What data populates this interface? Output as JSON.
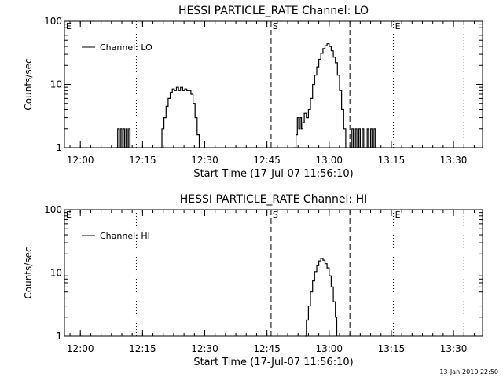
{
  "chart_data": [
    {
      "type": "line",
      "title": "HESSI PARTICLE_RATE Channel: LO",
      "xlabel": "Start Time (17-Jul-07 11:56:10)",
      "ylabel": "Counts/sec",
      "y_scale": "log",
      "ylim": [
        1,
        100
      ],
      "y_ticks": [
        {
          "value": 1,
          "label": "1"
        },
        {
          "value": 10,
          "label": "10"
        },
        {
          "value": 100,
          "label": "100"
        }
      ],
      "xlim": [
        "11:56:10",
        "13:37:00"
      ],
      "x_ticks": [
        "12:00",
        "12:15",
        "12:30",
        "12:45",
        "13:00",
        "13:15",
        "13:30"
      ],
      "legend": {
        "placement": "top-left",
        "entries": [
          "Channel: LO"
        ]
      },
      "markers": [
        {
          "label": "E",
          "time": "11:56:10",
          "style": "dotted"
        },
        {
          "label": "",
          "time": "12:13:30",
          "style": "dotted"
        },
        {
          "label": "S",
          "time": "12:46:00",
          "style": "dashed"
        },
        {
          "label": "",
          "time": "13:05:00",
          "style": "dashed"
        },
        {
          "label": "E",
          "time": "13:15:30",
          "style": "dotted"
        },
        {
          "label": "",
          "time": "13:32:30",
          "style": "dotted"
        }
      ],
      "series": [
        {
          "name": "Channel: LO",
          "segments": [
            [
              [
                "12:08:40",
                1
              ],
              [
                "12:09:00",
                2
              ],
              [
                "12:09:20",
                1
              ],
              [
                "12:09:40",
                2
              ],
              [
                "12:10:00",
                1
              ],
              [
                "12:10:20",
                2
              ],
              [
                "12:10:40",
                1
              ],
              [
                "12:11:00",
                2
              ],
              [
                "12:11:20",
                1
              ],
              [
                "12:11:40",
                2
              ],
              [
                "12:12:00",
                1
              ]
            ],
            [
              [
                "12:19:00",
                1
              ],
              [
                "12:19:40",
                2
              ],
              [
                "12:20:10",
                3
              ],
              [
                "12:20:40",
                4.5
              ],
              [
                "12:21:10",
                6
              ],
              [
                "12:21:40",
                7.5
              ],
              [
                "12:22:10",
                8.5
              ],
              [
                "12:22:40",
                8
              ],
              [
                "12:23:10",
                9
              ],
              [
                "12:23:40",
                8
              ],
              [
                "12:24:10",
                9
              ],
              [
                "12:24:40",
                8
              ],
              [
                "12:25:10",
                8.5
              ],
              [
                "12:25:40",
                8
              ],
              [
                "12:26:10",
                8
              ],
              [
                "12:26:40",
                7
              ],
              [
                "12:27:10",
                5
              ],
              [
                "12:27:40",
                3
              ],
              [
                "12:28:10",
                1.6
              ],
              [
                "12:28:40",
                1
              ]
            ],
            [
              [
                "12:51:30",
                1
              ],
              [
                "12:52:00",
                1.6
              ],
              [
                "12:52:20",
                3
              ],
              [
                "12:52:40",
                2
              ],
              [
                "12:53:00",
                3
              ],
              [
                "12:53:20",
                2
              ],
              [
                "12:53:40",
                2.5
              ],
              [
                "12:54:00",
                3.5
              ],
              [
                "12:54:30",
                3
              ],
              [
                "12:55:00",
                4
              ],
              [
                "12:55:30",
                6
              ],
              [
                "12:56:00",
                10
              ],
              [
                "12:56:30",
                14
              ],
              [
                "12:57:00",
                19
              ],
              [
                "12:57:30",
                25
              ],
              [
                "12:58:00",
                31
              ],
              [
                "12:58:30",
                37
              ],
              [
                "12:59:00",
                41
              ],
              [
                "12:59:30",
                44
              ],
              [
                "13:00:00",
                40
              ],
              [
                "13:00:30",
                34
              ],
              [
                "13:01:00",
                27
              ],
              [
                "13:01:30",
                22
              ],
              [
                "13:02:00",
                14
              ],
              [
                "13:02:30",
                8
              ],
              [
                "13:03:00",
                4
              ],
              [
                "13:03:30",
                2
              ],
              [
                "13:04:00",
                1
              ]
            ],
            [
              [
                "13:05:10",
                1
              ],
              [
                "13:05:30",
                2
              ],
              [
                "13:05:50",
                1
              ],
              [
                "13:06:20",
                2
              ],
              [
                "13:06:40",
                1
              ],
              [
                "13:07:10",
                2
              ],
              [
                "13:07:30",
                1
              ],
              [
                "13:08:00",
                2
              ],
              [
                "13:08:20",
                1
              ],
              [
                "13:09:10",
                2
              ],
              [
                "13:09:30",
                1
              ],
              [
                "13:10:00",
                2
              ],
              [
                "13:10:20",
                1
              ],
              [
                "13:10:50",
                2
              ],
              [
                "13:11:10",
                1
              ]
            ]
          ]
        }
      ]
    },
    {
      "type": "line",
      "title": "HESSI PARTICLE_RATE Channel: HI",
      "xlabel": "Start Time (17-Jul-07 11:56:10)",
      "ylabel": "Counts/sec",
      "y_scale": "log",
      "ylim": [
        1,
        100
      ],
      "y_ticks": [
        {
          "value": 1,
          "label": "1"
        },
        {
          "value": 10,
          "label": "10"
        },
        {
          "value": 100,
          "label": "100"
        }
      ],
      "xlim": [
        "11:56:10",
        "13:37:00"
      ],
      "x_ticks": [
        "12:00",
        "12:15",
        "12:30",
        "12:45",
        "13:00",
        "13:15",
        "13:30"
      ],
      "legend": {
        "placement": "top-left",
        "entries": [
          "Channel: HI"
        ]
      },
      "markers": [
        {
          "label": "E",
          "time": "11:56:10",
          "style": "dotted"
        },
        {
          "label": "",
          "time": "12:13:30",
          "style": "dotted"
        },
        {
          "label": "S",
          "time": "12:46:00",
          "style": "dashed"
        },
        {
          "label": "",
          "time": "13:05:00",
          "style": "dashed"
        },
        {
          "label": "E",
          "time": "13:15:30",
          "style": "dotted"
        },
        {
          "label": "",
          "time": "13:32:30",
          "style": "dotted"
        }
      ],
      "series": [
        {
          "name": "Channel: HI",
          "segments": [
            [
              [
                "12:54:10",
                1
              ],
              [
                "12:54:30",
                1.8
              ],
              [
                "12:55:00",
                3
              ],
              [
                "12:55:30",
                5
              ],
              [
                "12:56:00",
                7.5
              ],
              [
                "12:56:30",
                10.5
              ],
              [
                "12:57:00",
                13
              ],
              [
                "12:57:30",
                15.5
              ],
              [
                "12:58:00",
                17
              ],
              [
                "12:58:30",
                16
              ],
              [
                "12:59:00",
                14
              ],
              [
                "12:59:30",
                12
              ],
              [
                "13:00:00",
                9
              ],
              [
                "13:00:30",
                6
              ],
              [
                "13:01:00",
                3.5
              ],
              [
                "13:01:30",
                2
              ],
              [
                "13:01:50",
                1
              ]
            ]
          ]
        }
      ]
    }
  ],
  "footer": {
    "timestamp": "13-Jan-2010 22:50"
  }
}
